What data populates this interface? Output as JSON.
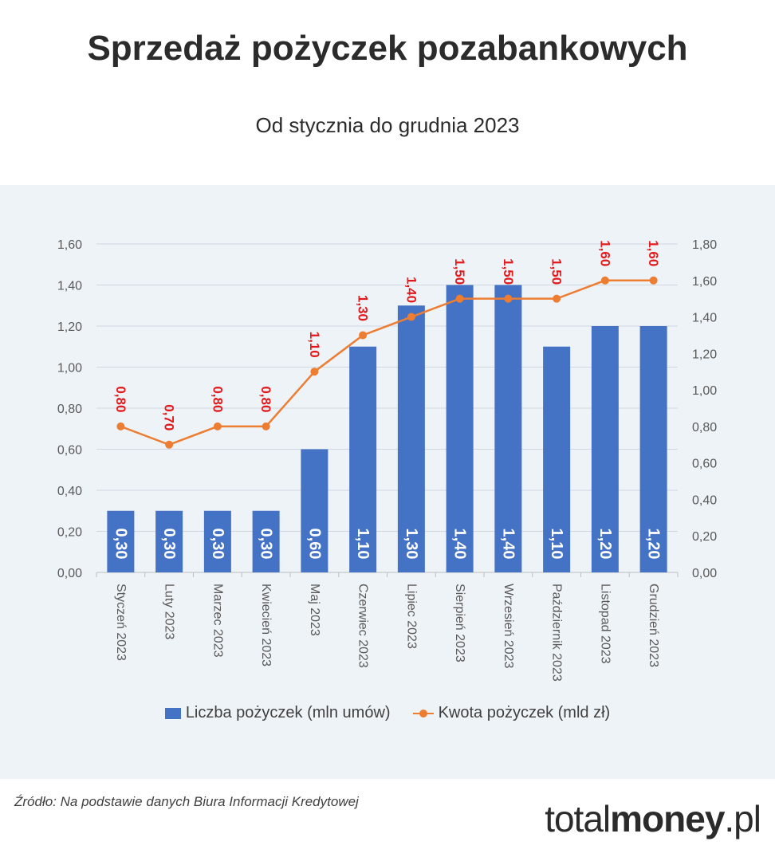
{
  "title": "Sprzedaż pożyczek pozabankowych",
  "subtitle": "Od stycznia do grudnia 2023",
  "source": "Źródło: Na podstawie danych Biura Informacji Kredytowej",
  "logo": {
    "part1": "total",
    "part2": "money",
    "part3": ".pl"
  },
  "chart_data": {
    "type": "bar+line",
    "categories": [
      "Styczeń 2023",
      "Luty 2023",
      "Marzec 2023",
      "Kwiecień 2023",
      "Maj 2023",
      "Czerwiec 2023",
      "Lipiec 2023",
      "Sierpień 2023",
      "Wrzesień 2023",
      "Październik 2023",
      "Listopad 2023",
      "Grudzień 2023"
    ],
    "series": [
      {
        "name": "Liczba pożyczek (mln umów)",
        "type": "bar",
        "axis": "left",
        "values": [
          0.3,
          0.3,
          0.3,
          0.3,
          0.6,
          1.1,
          1.3,
          1.4,
          1.4,
          1.1,
          1.2,
          1.2
        ],
        "labels": [
          "0,30",
          "0,30",
          "0,30",
          "0,30",
          "0,60",
          "1,10",
          "1,30",
          "1,40",
          "1,40",
          "1,10",
          "1,20",
          "1,20"
        ],
        "color": "#4472c4"
      },
      {
        "name": "Kwota pożyczek (mld zł)",
        "type": "line",
        "axis": "right",
        "values": [
          0.8,
          0.7,
          0.8,
          0.8,
          1.1,
          1.3,
          1.4,
          1.5,
          1.5,
          1.5,
          1.6,
          1.6
        ],
        "labels": [
          "0,80",
          "0,70",
          "0,80",
          "0,80",
          "1,10",
          "1,30",
          "1,40",
          "1,50",
          "1,50",
          "1,50",
          "1,60",
          "1,60"
        ],
        "color": "#ed7d31",
        "label_color": "#e31a1c"
      }
    ],
    "y_left": {
      "lim": [
        0,
        1.6
      ],
      "ticks": [
        "0,00",
        "0,20",
        "0,40",
        "0,60",
        "0,80",
        "1,00",
        "1,20",
        "1,40",
        "1,60"
      ]
    },
    "y_right": {
      "lim": [
        0,
        1.8
      ],
      "ticks": [
        "0,00",
        "0,20",
        "0,40",
        "0,60",
        "0,80",
        "1,00",
        "1,20",
        "1,40",
        "1,60",
        "1,80"
      ]
    },
    "grid": true,
    "legend": "bottom"
  }
}
